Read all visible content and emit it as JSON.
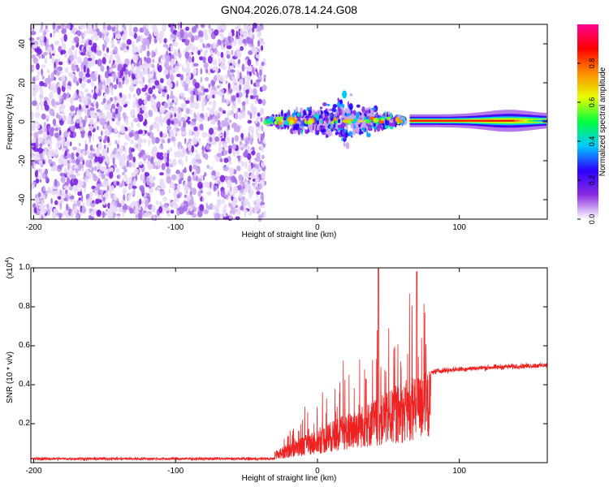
{
  "title": "GN04.2026.078.14.24.G08",
  "chart_data": [
    {
      "type": "heatmap",
      "name": "spectrogram",
      "xlabel": "Height of straight line (km)",
      "ylabel": "Frequency (Hz)",
      "xlim": [
        -202,
        162
      ],
      "ylim": [
        -50,
        50
      ],
      "xticks": [
        -200,
        -100,
        0,
        100
      ],
      "yticks": [
        -40,
        -20,
        0,
        20,
        40
      ],
      "noise_region_x": [
        -202,
        -37
      ],
      "signal_start_x": -37,
      "tone_frequency": 0.5,
      "tone_x": [
        65,
        162
      ],
      "colorbar": {
        "label": "Normalized spectral amplitude",
        "range": [
          0,
          1
        ],
        "ticks": [
          0.0,
          0.2,
          0.4,
          0.6,
          0.8
        ],
        "colors": [
          "#ffffff",
          "#8a2be2",
          "#2a00ff",
          "#00c8ff",
          "#00ff40",
          "#e6ff00",
          "#ff8c00",
          "#ff0000",
          "#ff0090"
        ]
      }
    },
    {
      "type": "line",
      "name": "snr",
      "xlabel": "Height of straight line (km)",
      "ylabel": "SNR (10 * v/v)",
      "scale_label_base": "(x10",
      "scale_label_exp": "4",
      "scale_label_end": ")",
      "xlim": [
        -202,
        162
      ],
      "ylim": [
        0,
        1.0
      ],
      "xticks": [
        -200,
        -100,
        0,
        100
      ],
      "yticks": [
        0.2,
        0.4,
        0.6,
        0.8,
        1.0
      ],
      "color": "#ee2222",
      "segments": [
        {
          "x": [
            -202,
            -30
          ],
          "mean": 0.02,
          "noise": 0.012
        },
        {
          "x": [
            -30,
            80
          ],
          "mean_start": 0.05,
          "mean_end": 0.4,
          "noise": "large",
          "peak": 1.0
        },
        {
          "x": [
            80,
            162
          ],
          "mean_start": 0.46,
          "mean_end": 0.5,
          "noise": 0.02
        }
      ]
    }
  ]
}
